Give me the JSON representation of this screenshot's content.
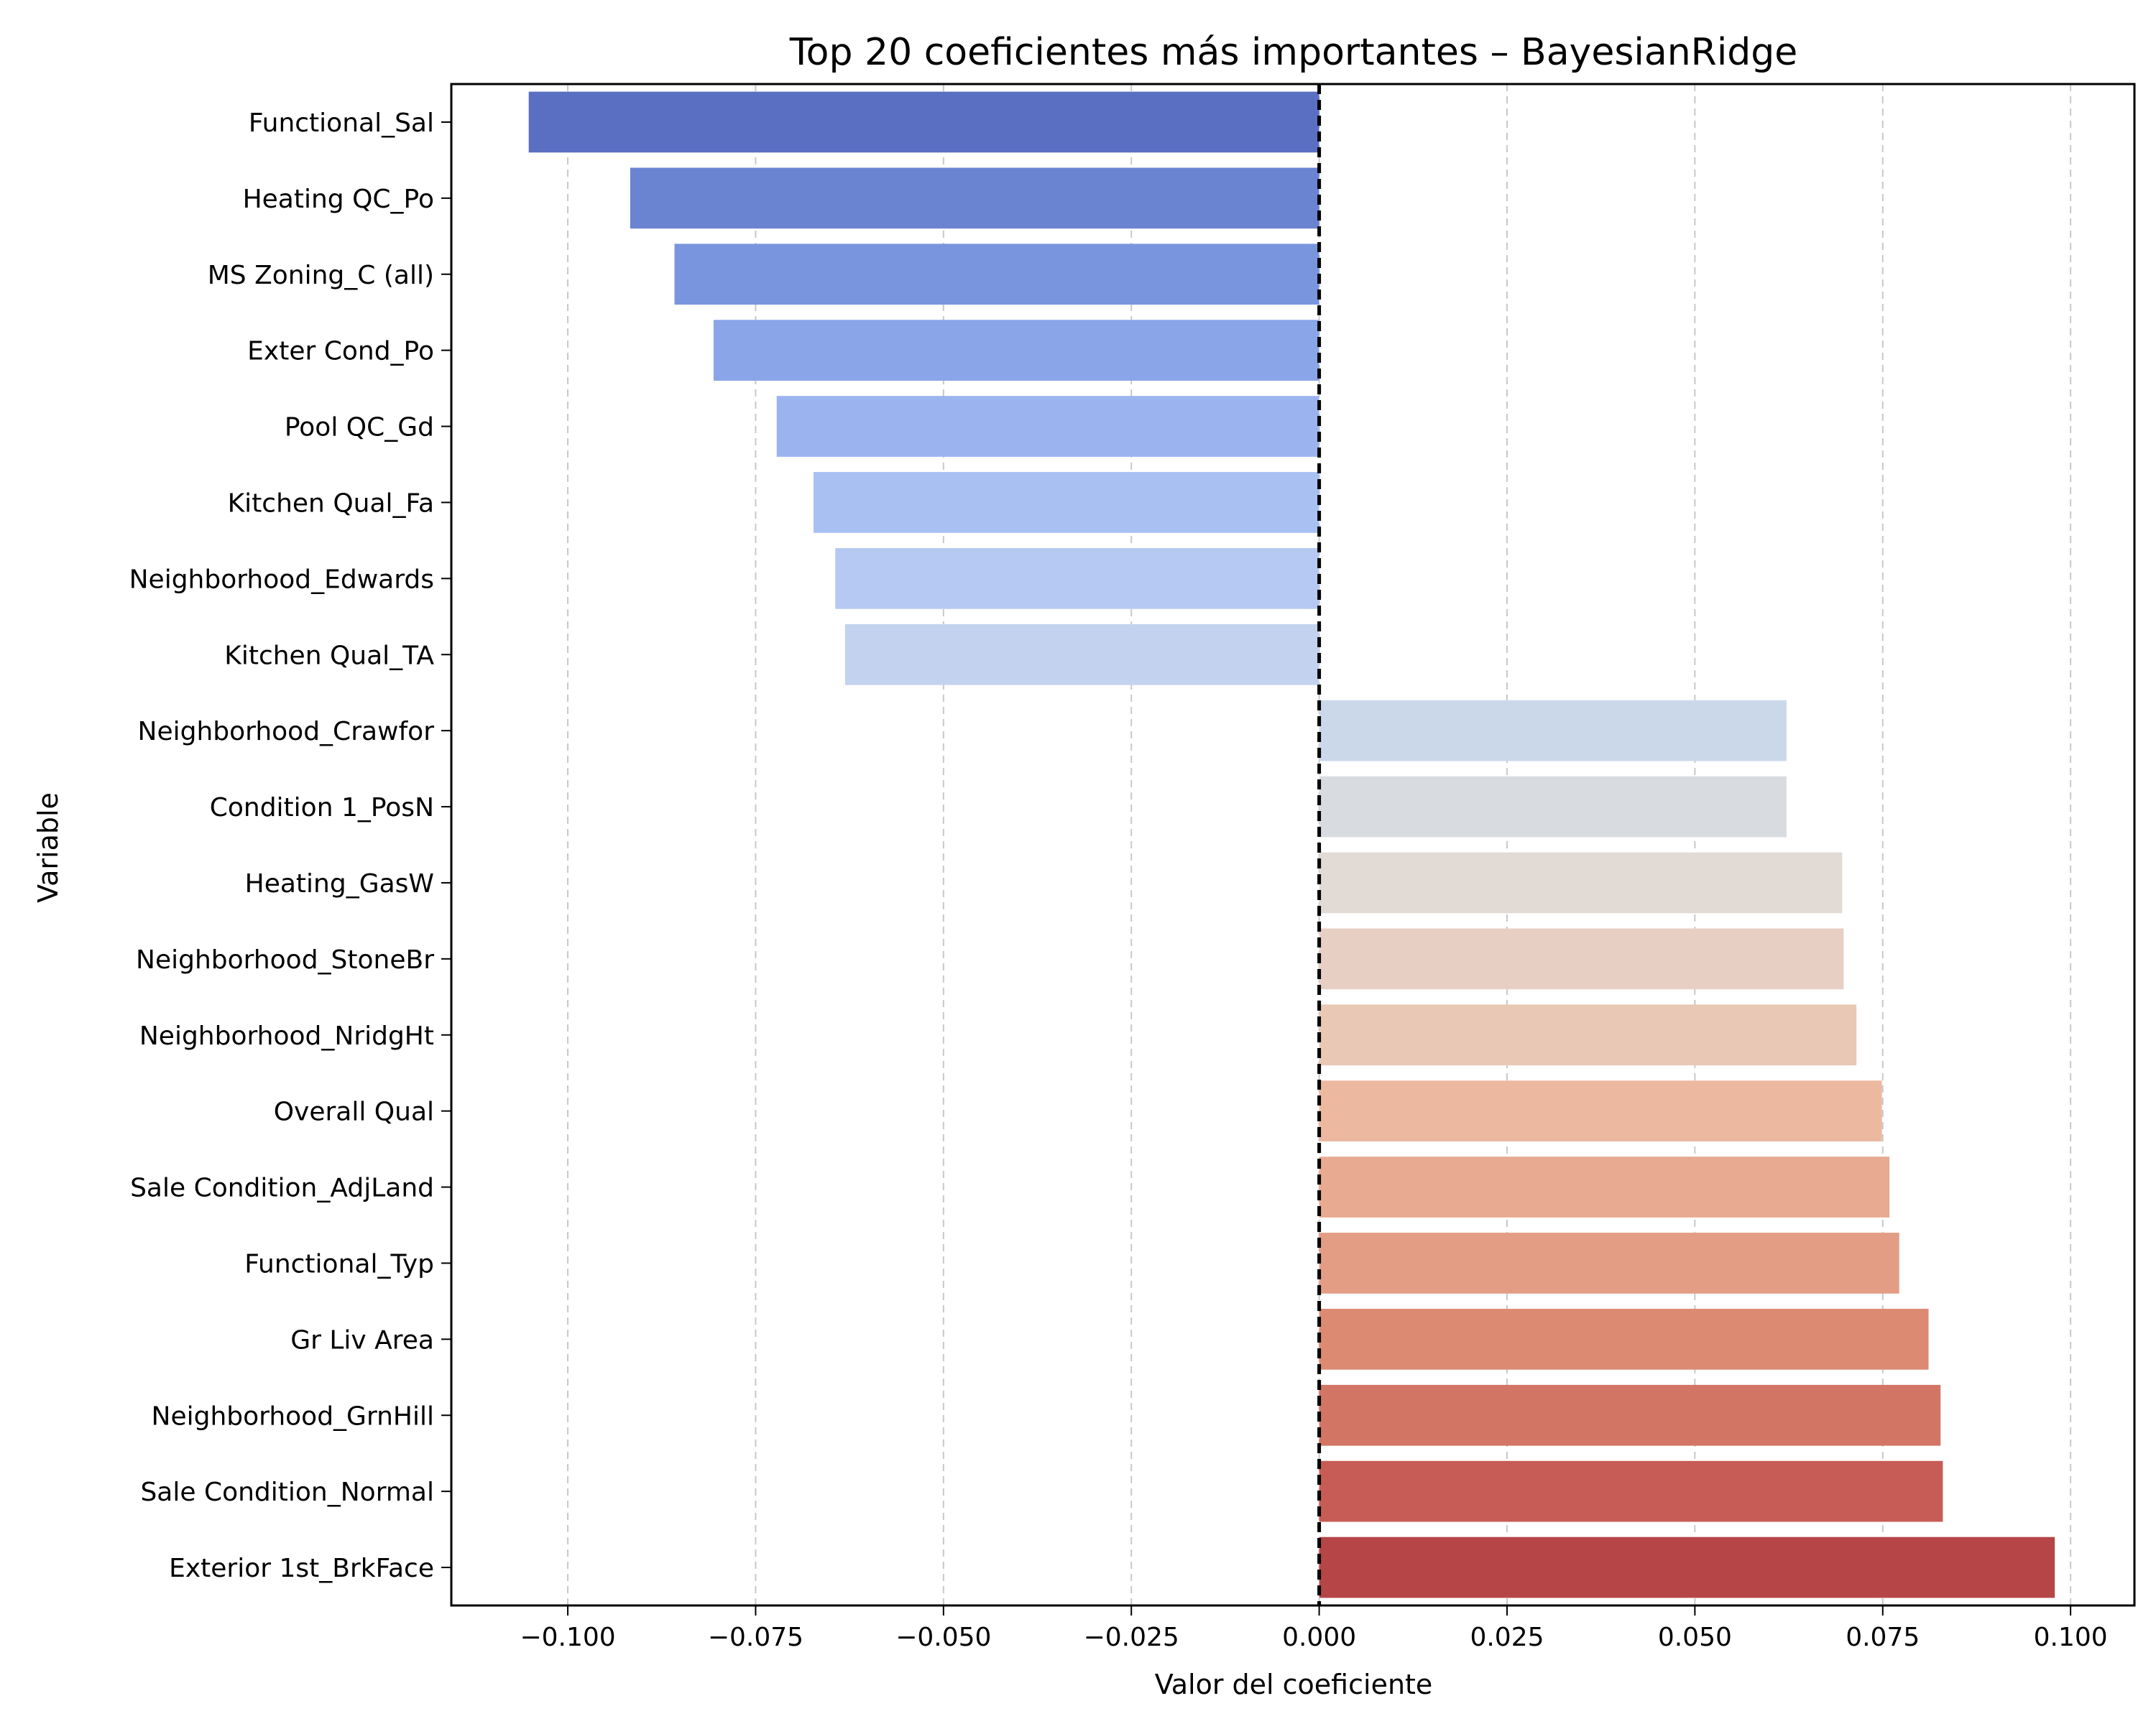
{
  "chart_data": {
    "type": "bar",
    "orientation": "horizontal",
    "title": "Top 20 coeficientes más importantes – BayesianRidge",
    "xlabel": "Valor del coeficiente",
    "ylabel": "Variable",
    "xlim": [
      -0.1155,
      0.1085
    ],
    "xticks": [
      -0.1,
      -0.075,
      -0.05,
      -0.025,
      0.0,
      0.025,
      0.05,
      0.075,
      0.1
    ],
    "xtick_labels": [
      "−0.100",
      "−0.075",
      "−0.050",
      "−0.025",
      "0.000",
      "0.025",
      "0.050",
      "0.075",
      "0.100"
    ],
    "grid": "x, dashed",
    "reference_line": 0.0,
    "categories": [
      "Functional_Sal",
      "Heating QC_Po",
      "MS Zoning_C (all)",
      "Exter Cond_Po",
      "Pool QC_Gd",
      "Kitchen Qual_Fa",
      "Neighborhood_Edwards",
      "Kitchen Qual_TA",
      "Neighborhood_Crawfor",
      "Condition 1_PosN",
      "Heating_GasW",
      "Neighborhood_StoneBr",
      "Neighborhood_NridgHt",
      "Overall Qual",
      "Sale Condition_AdjLand",
      "Functional_Typ",
      "Gr Liv Area",
      "Neighborhood_GrnHill",
      "Sale Condition_Normal",
      "Exterior 1st_BrkFace"
    ],
    "values": [
      -0.1052,
      -0.0917,
      -0.0858,
      -0.0806,
      -0.0722,
      -0.0673,
      -0.0644,
      -0.0631,
      0.0622,
      0.0622,
      0.0696,
      0.0698,
      0.0715,
      0.0749,
      0.0759,
      0.0772,
      0.0811,
      0.0827,
      0.083,
      0.0979
    ],
    "colors": [
      "#5b6fc2",
      "#6a84d2",
      "#7995de",
      "#8aa5e8",
      "#9bb4f0",
      "#a9c0f3",
      "#b5c9f2",
      "#c3d3ef",
      "#cbd8ea",
      "#d8dbe0",
      "#e2dad4",
      "#e8cfc4",
      "#eac8b6",
      "#ecb9a0",
      "#e8aa91",
      "#e39d85",
      "#dd8a73",
      "#d27565",
      "#c75b55",
      "#b54547"
    ]
  }
}
